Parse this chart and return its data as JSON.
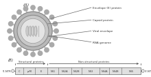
{
  "panel_A_label": "(A)",
  "panel_B_label": "(B)",
  "annotations": [
    "Envelope (E) protein",
    "Capsid protein",
    "Viral envelope",
    "RNA genome"
  ],
  "genome_labels": [
    "C",
    "prM",
    "E",
    "NS1",
    "NS2A",
    "NS2B",
    "NS3",
    "NS4A",
    "NS4B",
    "NS5"
  ],
  "structural_label": "Structural proteins",
  "nonstructural_label": "Non-structural proteins",
  "ftr_label": "5'-NTR",
  "ttr_label": "3'-NTR",
  "bg_color": "#ffffff",
  "spike_color": "#aaaaaa",
  "outer_ring_color": "#b8b8b8",
  "mid_ring_color": "#c8c8c8",
  "inner_ring_color": "#d8d8d8",
  "capsid_color": "#e4e4e4",
  "coil_color": "#bbbbbb",
  "genome_box_color": "#e0e0e0",
  "genome_box_edge": "#666666",
  "line_color": "#444444",
  "text_color": "#333333",
  "ann_line_color": "#666666",
  "widths_rel": [
    1.0,
    1.5,
    1.5,
    1.4,
    1.6,
    1.3,
    2.2,
    1.2,
    1.5,
    2.4
  ]
}
